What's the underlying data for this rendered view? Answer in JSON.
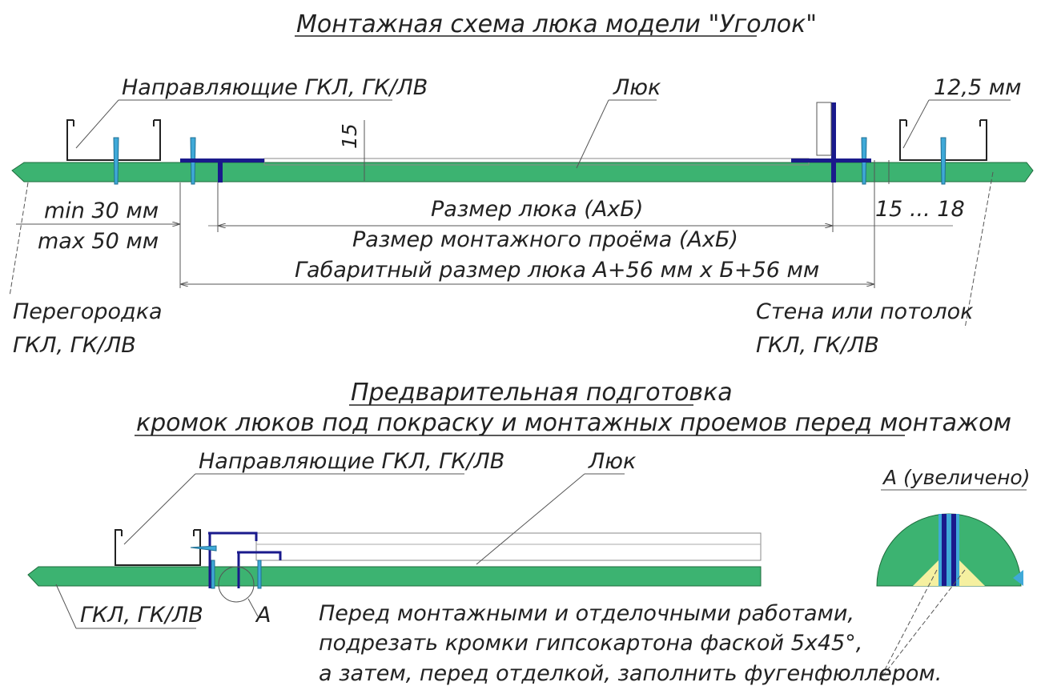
{
  "title_top": "Монтажная схема люка модели \"Уголок\"",
  "top": {
    "label_guides": "Направляющие ГКЛ, ГК/ЛВ",
    "label_hatch": "Люк",
    "label_thickness": "12,5 мм",
    "dim_15": "15",
    "dim_min": "min 30 мм",
    "dim_max": "max 50 мм",
    "dim_hatch_size": "Размер люка (АхБ)",
    "dim_gap": "15 ... 18",
    "dim_opening": "Размер монтажного проёма (АхБ)",
    "dim_overall": "Габаритный размер люка А+56 мм х Б+56 мм",
    "label_partition_1": "Перегородка",
    "label_partition_2": "ГКЛ, ГК/ЛВ",
    "label_wall_1": "Стена или потолок",
    "label_wall_2": "ГКЛ, ГК/ЛВ"
  },
  "bottom": {
    "title_1": "Предварительная подготовка",
    "title_2": "кромок люков под покраску и монтажных проемов перед монтажом",
    "label_guides": "Направляющие ГКЛ, ГК/ЛВ",
    "label_hatch": "Люк",
    "label_board": "ГКЛ, ГК/ЛВ",
    "label_a": "А",
    "label_zoom": "А (увеличено)",
    "note_1": "Перед монтажными и отделочными работами,",
    "note_2": "подрезать кромки гипсокартона фаской 5х45°,",
    "note_3": "а затем, перед отделкой, заполнить фугенфюллером."
  },
  "colors": {
    "board": "#3cb371",
    "profile": "#1a1a8c",
    "screw": "#3fa9d8",
    "filler": "#f5f0a0",
    "line": "#555555"
  }
}
